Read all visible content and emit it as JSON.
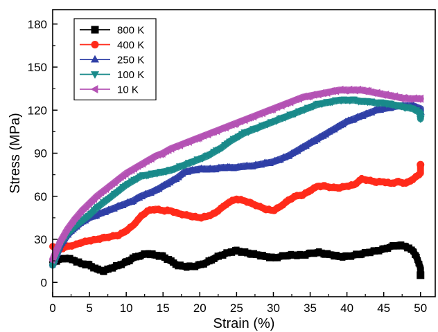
{
  "chart_data": {
    "type": "line",
    "title": "",
    "xlabel": "Strain (%)",
    "ylabel": "Stress (MPa)",
    "xlim": [
      0,
      52
    ],
    "ylim": [
      -10,
      190
    ],
    "xticks": [
      0,
      5,
      10,
      15,
      20,
      25,
      30,
      35,
      40,
      45,
      50
    ],
    "yticks": [
      0,
      30,
      60,
      90,
      120,
      150,
      180
    ],
    "legend_position": "top-left",
    "grid": false,
    "series": [
      {
        "name": "800 K",
        "color": "#000000",
        "marker": "square",
        "points": [
          [
            0,
            14
          ],
          [
            1,
            16
          ],
          [
            2,
            17
          ],
          [
            3,
            15
          ],
          [
            4,
            13
          ],
          [
            5,
            12
          ],
          [
            6,
            9
          ],
          [
            7,
            8
          ],
          [
            8,
            10
          ],
          [
            9,
            12
          ],
          [
            10,
            14
          ],
          [
            11,
            17
          ],
          [
            12,
            19
          ],
          [
            13,
            20
          ],
          [
            14,
            19
          ],
          [
            15,
            18
          ],
          [
            16,
            15
          ],
          [
            17,
            12
          ],
          [
            18,
            11
          ],
          [
            19,
            11
          ],
          [
            20,
            12
          ],
          [
            21,
            14
          ],
          [
            22,
            17
          ],
          [
            23,
            19
          ],
          [
            24,
            21
          ],
          [
            25,
            22
          ],
          [
            26,
            21
          ],
          [
            27,
            20
          ],
          [
            28,
            19
          ],
          [
            29,
            18
          ],
          [
            30,
            17
          ],
          [
            31,
            18
          ],
          [
            32,
            19
          ],
          [
            33,
            19
          ],
          [
            34,
            19
          ],
          [
            35,
            20
          ],
          [
            36,
            21
          ],
          [
            37,
            20
          ],
          [
            38,
            19
          ],
          [
            39,
            18
          ],
          [
            40,
            18
          ],
          [
            41,
            19
          ],
          [
            42,
            20
          ],
          [
            43,
            21
          ],
          [
            44,
            22
          ],
          [
            45,
            23
          ],
          [
            46,
            25
          ],
          [
            47,
            26
          ],
          [
            48,
            25
          ],
          [
            49,
            22
          ],
          [
            49.5,
            17
          ],
          [
            50,
            10
          ],
          [
            50,
            5
          ]
        ]
      },
      {
        "name": "400 K",
        "color": "#ff2a1a",
        "marker": "circle",
        "points": [
          [
            0,
            25
          ],
          [
            1,
            23
          ],
          [
            2,
            25
          ],
          [
            3,
            26
          ],
          [
            4,
            28
          ],
          [
            5,
            29
          ],
          [
            6,
            30
          ],
          [
            7,
            31
          ],
          [
            8,
            32
          ],
          [
            9,
            33
          ],
          [
            10,
            36
          ],
          [
            11,
            40
          ],
          [
            12,
            46
          ],
          [
            13,
            50
          ],
          [
            14,
            51
          ],
          [
            15,
            50
          ],
          [
            16,
            50
          ],
          [
            17,
            48
          ],
          [
            18,
            47
          ],
          [
            19,
            46
          ],
          [
            20,
            45
          ],
          [
            21,
            46
          ],
          [
            22,
            48
          ],
          [
            23,
            52
          ],
          [
            24,
            56
          ],
          [
            25,
            58
          ],
          [
            26,
            57
          ],
          [
            27,
            55
          ],
          [
            28,
            53
          ],
          [
            29,
            51
          ],
          [
            30,
            50
          ],
          [
            31,
            53
          ],
          [
            32,
            57
          ],
          [
            33,
            60
          ],
          [
            34,
            61
          ],
          [
            35,
            64
          ],
          [
            36,
            67
          ],
          [
            37,
            67
          ],
          [
            38,
            66
          ],
          [
            39,
            66
          ],
          [
            40,
            67
          ],
          [
            41,
            68
          ],
          [
            42,
            72
          ],
          [
            43,
            71
          ],
          [
            44,
            70
          ],
          [
            45,
            70
          ],
          [
            46,
            69
          ],
          [
            47,
            70
          ],
          [
            48,
            69
          ],
          [
            49,
            72
          ],
          [
            50,
            76
          ],
          [
            50,
            82
          ]
        ]
      },
      {
        "name": "250 K",
        "color": "#2f3fa6",
        "marker": "triangle-up",
        "points": [
          [
            0,
            12
          ],
          [
            1,
            25
          ],
          [
            2,
            33
          ],
          [
            3,
            38
          ],
          [
            4,
            42
          ],
          [
            5,
            45
          ],
          [
            6,
            47
          ],
          [
            7,
            49
          ],
          [
            8,
            51
          ],
          [
            9,
            53
          ],
          [
            10,
            55
          ],
          [
            11,
            57
          ],
          [
            12,
            60
          ],
          [
            13,
            62
          ],
          [
            14,
            64
          ],
          [
            15,
            67
          ],
          [
            16,
            70
          ],
          [
            17,
            73
          ],
          [
            18,
            77
          ],
          [
            19,
            78
          ],
          [
            20,
            79
          ],
          [
            21,
            79
          ],
          [
            22,
            79
          ],
          [
            23,
            80
          ],
          [
            24,
            80
          ],
          [
            25,
            80
          ],
          [
            26,
            81
          ],
          [
            27,
            81
          ],
          [
            28,
            82
          ],
          [
            29,
            83
          ],
          [
            30,
            84
          ],
          [
            31,
            86
          ],
          [
            32,
            88
          ],
          [
            33,
            91
          ],
          [
            34,
            94
          ],
          [
            35,
            97
          ],
          [
            36,
            100
          ],
          [
            37,
            103
          ],
          [
            38,
            106
          ],
          [
            39,
            109
          ],
          [
            40,
            112
          ],
          [
            41,
            114
          ],
          [
            42,
            116
          ],
          [
            43,
            118
          ],
          [
            44,
            120
          ],
          [
            45,
            121
          ],
          [
            46,
            122
          ],
          [
            47,
            123
          ],
          [
            48,
            123
          ],
          [
            49,
            123
          ],
          [
            50,
            121
          ],
          [
            50,
            119
          ]
        ]
      },
      {
        "name": "100 K",
        "color": "#198a8a",
        "marker": "triangle-down",
        "points": [
          [
            0,
            12
          ],
          [
            1,
            27
          ],
          [
            2,
            34
          ],
          [
            3,
            39
          ],
          [
            4,
            43
          ],
          [
            5,
            47
          ],
          [
            6,
            52
          ],
          [
            7,
            56
          ],
          [
            8,
            60
          ],
          [
            9,
            64
          ],
          [
            10,
            68
          ],
          [
            11,
            71
          ],
          [
            12,
            74
          ],
          [
            13,
            75
          ],
          [
            14,
            76
          ],
          [
            15,
            77
          ],
          [
            16,
            78
          ],
          [
            17,
            80
          ],
          [
            18,
            82
          ],
          [
            19,
            84
          ],
          [
            20,
            86
          ],
          [
            21,
            88
          ],
          [
            22,
            91
          ],
          [
            23,
            94
          ],
          [
            24,
            98
          ],
          [
            25,
            101
          ],
          [
            26,
            104
          ],
          [
            27,
            106
          ],
          [
            28,
            108
          ],
          [
            29,
            110
          ],
          [
            30,
            112
          ],
          [
            31,
            114
          ],
          [
            32,
            116
          ],
          [
            33,
            118
          ],
          [
            34,
            120
          ],
          [
            35,
            122
          ],
          [
            36,
            124
          ],
          [
            37,
            125
          ],
          [
            38,
            126
          ],
          [
            39,
            127
          ],
          [
            40,
            127
          ],
          [
            41,
            127
          ],
          [
            42,
            126
          ],
          [
            43,
            126
          ],
          [
            44,
            125
          ],
          [
            45,
            125
          ],
          [
            46,
            124
          ],
          [
            47,
            123
          ],
          [
            48,
            122
          ],
          [
            49,
            121
          ],
          [
            50,
            118
          ],
          [
            50,
            114
          ]
        ]
      },
      {
        "name": "10 K",
        "color": "#b452b4",
        "marker": "triangle-left",
        "points": [
          [
            0,
            16
          ],
          [
            1,
            28
          ],
          [
            2,
            37
          ],
          [
            3,
            44
          ],
          [
            4,
            50
          ],
          [
            5,
            55
          ],
          [
            6,
            60
          ],
          [
            7,
            64
          ],
          [
            8,
            68
          ],
          [
            9,
            72
          ],
          [
            10,
            76
          ],
          [
            11,
            79
          ],
          [
            12,
            82
          ],
          [
            13,
            85
          ],
          [
            14,
            88
          ],
          [
            15,
            90
          ],
          [
            16,
            93
          ],
          [
            17,
            95
          ],
          [
            18,
            97
          ],
          [
            19,
            99
          ],
          [
            20,
            101
          ],
          [
            21,
            103
          ],
          [
            22,
            105
          ],
          [
            23,
            107
          ],
          [
            24,
            109
          ],
          [
            25,
            111
          ],
          [
            26,
            113
          ],
          [
            27,
            115
          ],
          [
            28,
            117
          ],
          [
            29,
            119
          ],
          [
            30,
            121
          ],
          [
            31,
            123
          ],
          [
            32,
            125
          ],
          [
            33,
            127
          ],
          [
            34,
            129
          ],
          [
            35,
            130
          ],
          [
            36,
            131
          ],
          [
            37,
            132
          ],
          [
            38,
            133
          ],
          [
            39,
            134
          ],
          [
            40,
            134
          ],
          [
            41,
            134
          ],
          [
            42,
            134
          ],
          [
            43,
            133
          ],
          [
            44,
            132
          ],
          [
            45,
            131
          ],
          [
            46,
            130
          ],
          [
            47,
            129
          ],
          [
            48,
            128
          ],
          [
            49,
            128
          ],
          [
            50,
            128
          ]
        ]
      }
    ]
  }
}
